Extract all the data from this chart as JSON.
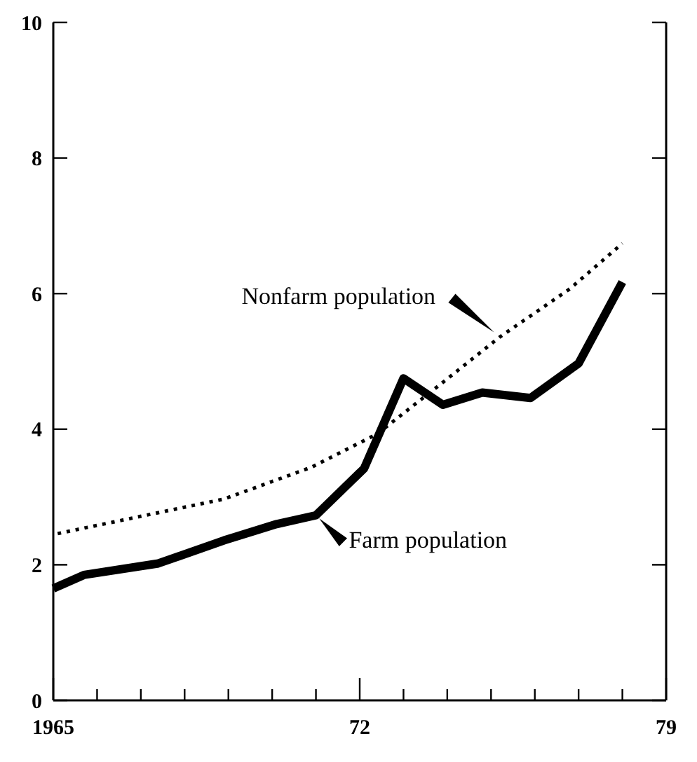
{
  "chart_data": {
    "type": "line",
    "xlim": [
      1965,
      1979
    ],
    "ylim": [
      0,
      10
    ],
    "xticks": [
      1965,
      {
        "value": 1966,
        "label": null
      },
      {
        "value": 1967,
        "label": null
      },
      {
        "value": 1968,
        "label": null
      },
      {
        "value": 1969,
        "label": null
      },
      {
        "value": 1970,
        "label": null
      },
      {
        "value": 1971,
        "label": null
      },
      {
        "value": 1972,
        "label": "72"
      },
      {
        "value": 1973,
        "label": null
      },
      {
        "value": 1974,
        "label": null
      },
      {
        "value": 1975,
        "label": null
      },
      {
        "value": 1976,
        "label": null
      },
      {
        "value": 1977,
        "label": null
      },
      {
        "value": 1978,
        "label": null
      },
      {
        "value": 1979,
        "label": "79"
      }
    ],
    "yticks": [
      0,
      2,
      4,
      6,
      8,
      10
    ],
    "series": [
      {
        "name": "Nonfarm population",
        "color": "#000000",
        "line_style": "dotted",
        "x": [
          1965.1,
          1968.9,
          1970.9,
          1972.4,
          1973.8,
          1975.2,
          1976.8,
          1978.0
        ],
        "values": [
          2.46,
          2.97,
          3.44,
          3.93,
          4.64,
          5.36,
          6.07,
          6.74
        ]
      },
      {
        "name": "Farm population",
        "color": "#000000",
        "line_style": "solid",
        "x": [
          1965.0,
          1965.7,
          1967.4,
          1968.9,
          1970.1,
          1971.0,
          1972.1,
          1973.0,
          1973.9,
          1974.8,
          1975.9,
          1977.0,
          1978.0
        ],
        "values": [
          1.65,
          1.85,
          2.02,
          2.36,
          2.6,
          2.73,
          3.42,
          4.75,
          4.36,
          4.54,
          4.46,
          4.97,
          6.17
        ]
      }
    ]
  }
}
